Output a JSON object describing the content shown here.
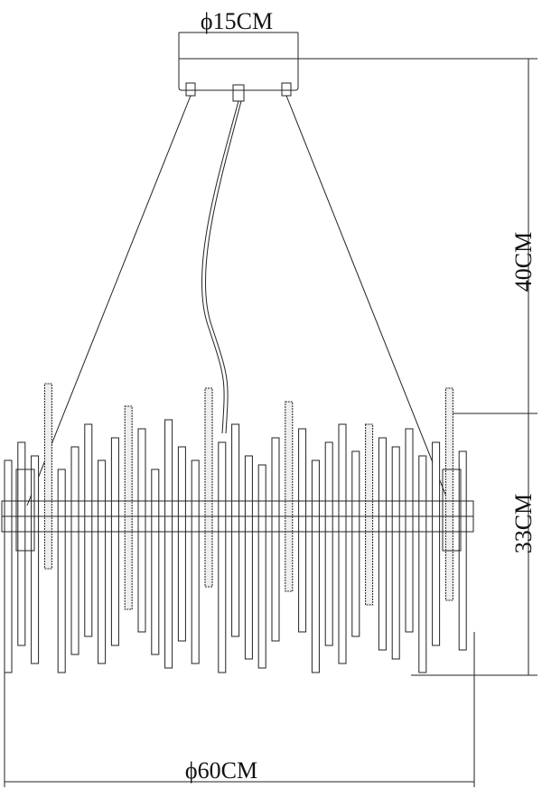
{
  "dimensions": {
    "canopy_diameter": "ϕ15CM",
    "drop_height": "40CM",
    "body_height": "33CM",
    "body_diameter": "ϕ60CM"
  }
}
